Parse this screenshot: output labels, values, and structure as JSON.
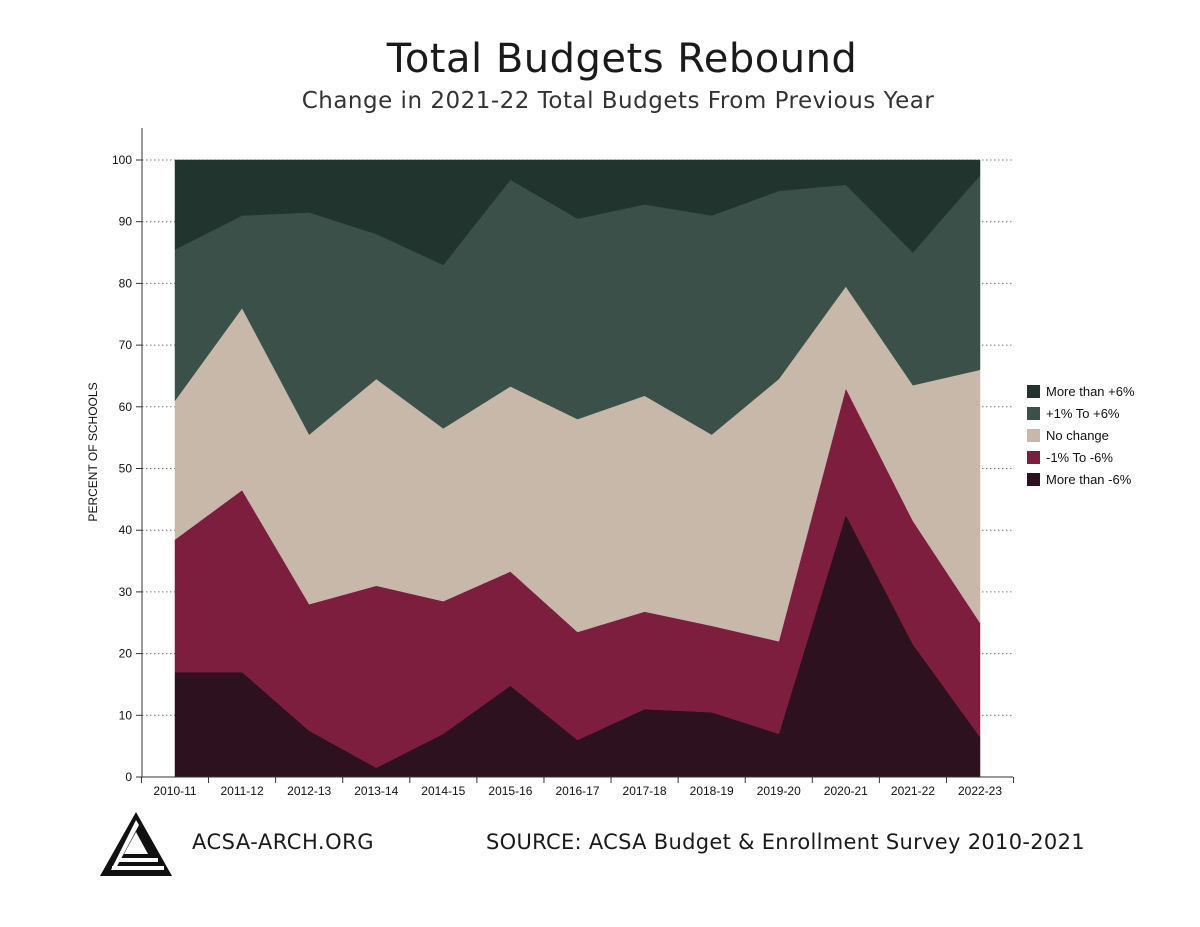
{
  "title": "Total Budgets Rebound",
  "subtitle": "Change in 2021-22 Total Budgets From Previous Year",
  "footer": {
    "site": "ACSA-ARCH.ORG",
    "source": "SOURCE: ACSA Budget & Enrollment Survey 2010-2021"
  },
  "logo_icon": "acsa-triangle-logo",
  "chart_data": {
    "type": "area",
    "stacked": true,
    "ylabel": "PERCENT OF SCHOOLS",
    "xlabel": "",
    "ylim": [
      0,
      100
    ],
    "yticks": [
      0,
      10,
      20,
      30,
      40,
      50,
      60,
      70,
      80,
      90,
      100
    ],
    "grid": "horizontal dotted",
    "legend_position": "right",
    "categories": [
      "2010-11",
      "2011-12",
      "2012-13",
      "2013-14",
      "2014-15",
      "2015-16",
      "2016-17",
      "2017-18",
      "2018-19",
      "2019-20",
      "2020-21",
      "2021-22",
      "2022-23"
    ],
    "series": [
      {
        "name": "More than -6%",
        "color": "#2e111e",
        "values": [
          17,
          17,
          7.5,
          1.5,
          7,
          14.8,
          6,
          11,
          10.5,
          7,
          42.5,
          21.5,
          6.5
        ]
      },
      {
        "name": "-1% To -6%",
        "color": "#7e1e3f",
        "values": [
          21.5,
          29.5,
          20.5,
          29.5,
          21.5,
          18.5,
          17.5,
          15.8,
          14,
          15,
          20.5,
          20,
          18.5
        ]
      },
      {
        "name": "No change",
        "color": "#c8b8aa",
        "values": [
          22.5,
          29.5,
          27.5,
          33.5,
          28,
          30,
          34.5,
          35,
          31,
          42.5,
          16.5,
          22,
          41
        ]
      },
      {
        "name": "+1% To +6%",
        "color": "#3a5048",
        "values": [
          24.5,
          15,
          36,
          23.5,
          26.5,
          33.5,
          32.5,
          31,
          35.5,
          30.5,
          16.5,
          21.5,
          31.5
        ]
      },
      {
        "name": "More than +6%",
        "color": "#22342e",
        "values": [
          14.5,
          9,
          8.5,
          12,
          17,
          3.2,
          9.5,
          7.2,
          9,
          5,
          4,
          15,
          2.5
        ]
      }
    ]
  }
}
